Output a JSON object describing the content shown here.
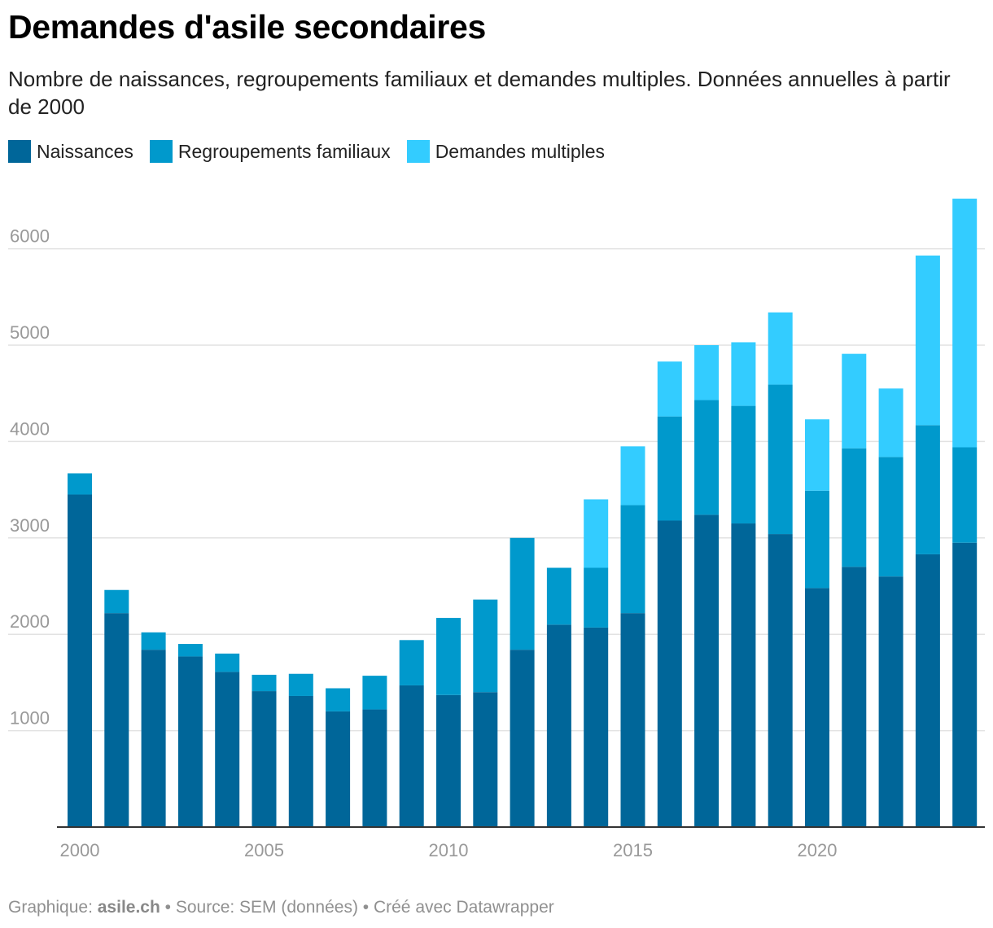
{
  "title": "Demandes d'asile secondaires",
  "subtitle": "Nombre de naissances, regroupements familiaux et demandes multiples. Données annuelles à partir de 2000",
  "legend": [
    {
      "label": "Naissances",
      "color": "#006699"
    },
    {
      "label": "Regroupements familiaux",
      "color": "#0099cc"
    },
    {
      "label": "Demandes multiples",
      "color": "#33ccff"
    }
  ],
  "footer": {
    "prefix": "Graphique: ",
    "author": "asile.ch",
    "rest": " • Source: SEM (données) • Créé avec Datawrapper"
  },
  "chart_data": {
    "type": "bar",
    "stacked": true,
    "title": "Demandes d'asile secondaires",
    "xlabel": "",
    "ylabel": "",
    "ylim": [
      0,
      6600
    ],
    "yticks": [
      1000,
      2000,
      3000,
      4000,
      5000,
      6000
    ],
    "xticks": [
      2000,
      2005,
      2010,
      2015,
      2020
    ],
    "grid": true,
    "categories": [
      2000,
      2001,
      2002,
      2003,
      2004,
      2005,
      2006,
      2007,
      2008,
      2009,
      2010,
      2011,
      2012,
      2013,
      2014,
      2015,
      2016,
      2017,
      2018,
      2019,
      2020,
      2021,
      2022,
      2023,
      2024
    ],
    "series": [
      {
        "name": "Naissances",
        "color": "#006699",
        "values": [
          3450,
          2220,
          1840,
          1770,
          1610,
          1410,
          1360,
          1200,
          1220,
          1470,
          1370,
          1400,
          1840,
          2100,
          2070,
          2220,
          3180,
          3240,
          3150,
          3040,
          2480,
          2700,
          2600,
          2830,
          2950
        ]
      },
      {
        "name": "Regroupements familiaux",
        "color": "#0099cc",
        "values": [
          220,
          240,
          180,
          130,
          190,
          170,
          230,
          240,
          350,
          470,
          800,
          960,
          1160,
          590,
          620,
          1120,
          1080,
          1190,
          1220,
          1550,
          1010,
          1230,
          1240,
          1340,
          990
        ]
      },
      {
        "name": "Demandes multiples",
        "color": "#33ccff",
        "values": [
          0,
          0,
          0,
          0,
          0,
          0,
          0,
          0,
          0,
          0,
          0,
          0,
          0,
          0,
          710,
          610,
          570,
          570,
          660,
          750,
          740,
          980,
          710,
          1760,
          2580
        ]
      }
    ]
  }
}
